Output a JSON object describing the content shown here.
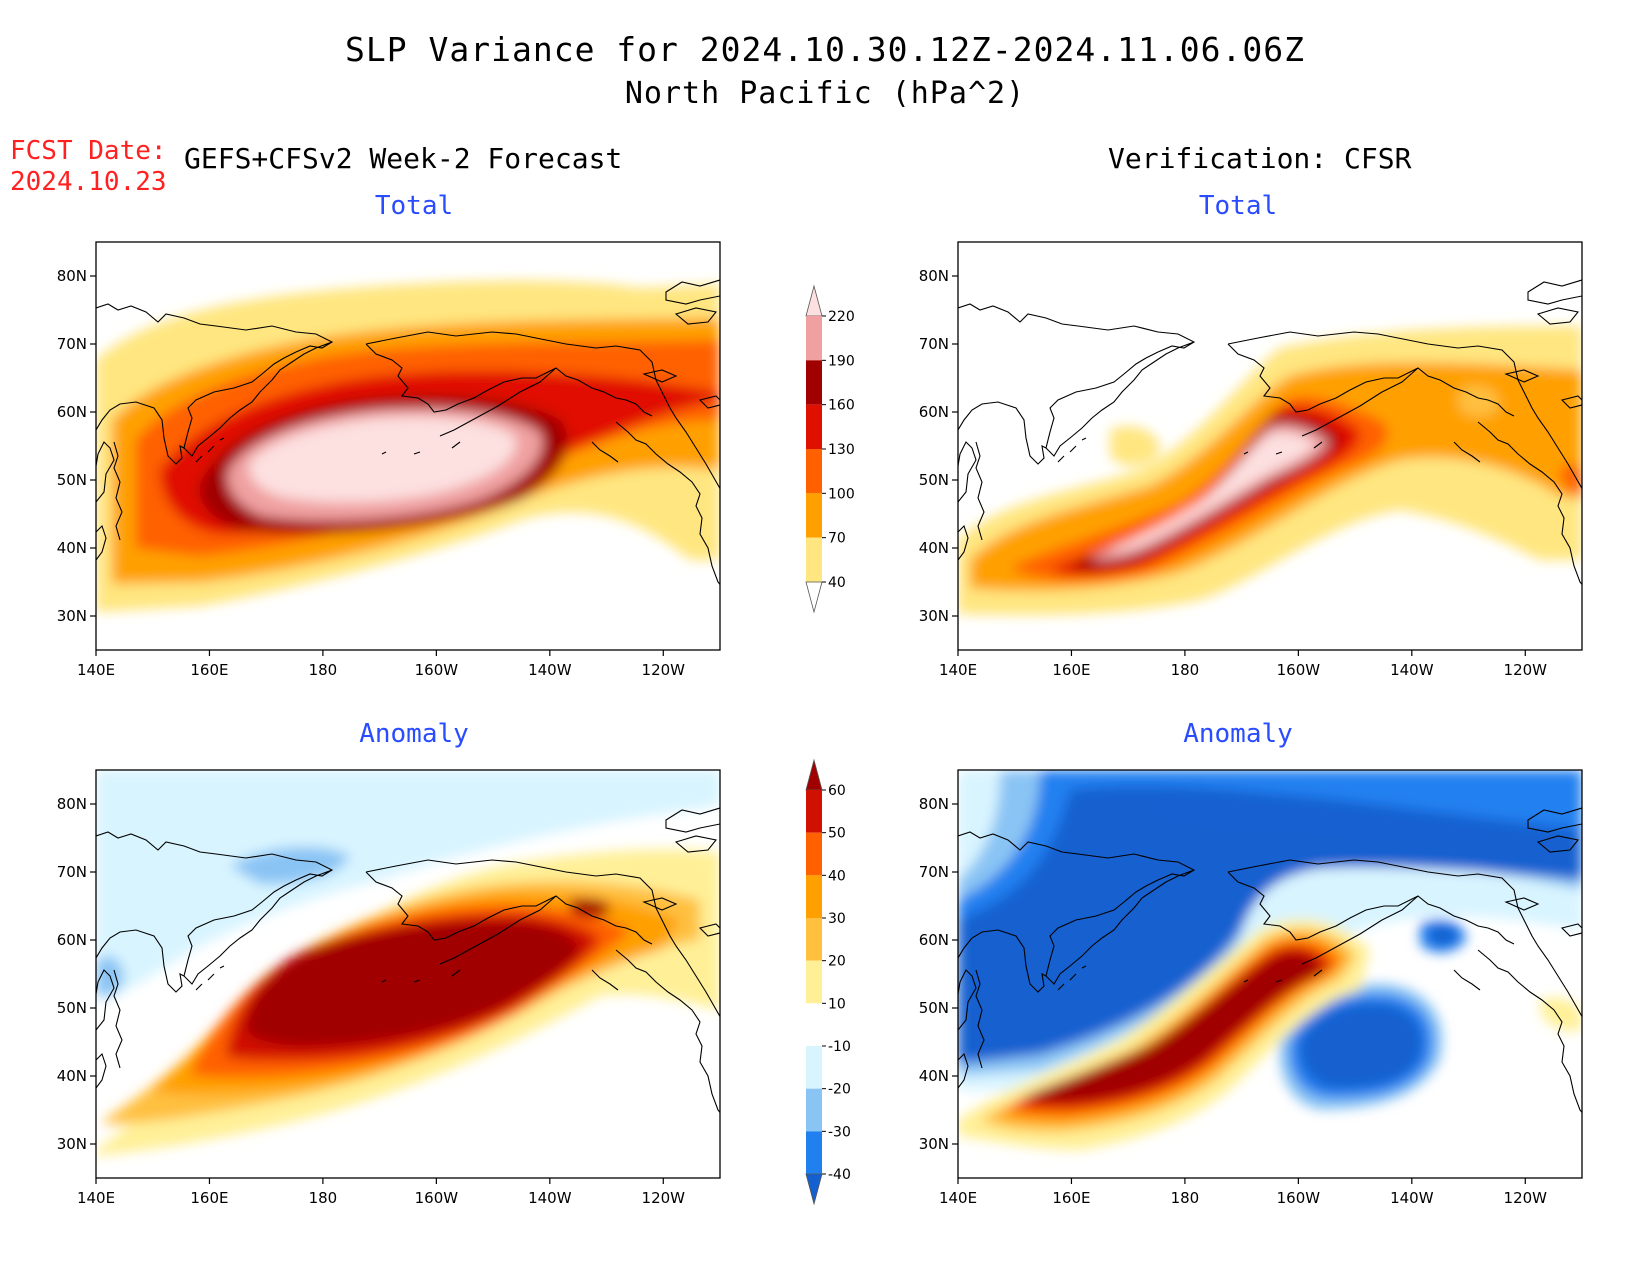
{
  "header": {
    "title": "SLP Variance for 2024.10.30.12Z-2024.11.06.06Z",
    "subtitle": "North Pacific (hPa^2)",
    "fcst_label": "FCST Date:",
    "fcst_date": "2024.10.23",
    "left_header": "GEFS+CFSv2 Week-2 Forecast",
    "right_header": "Verification: CFSR"
  },
  "panels": [
    {
      "id": "fcst-total",
      "title": "Total"
    },
    {
      "id": "verif-total",
      "title": "Total"
    },
    {
      "id": "fcst-anomaly",
      "title": "Anomaly"
    },
    {
      "id": "verif-anomaly",
      "title": "Anomaly"
    }
  ],
  "axes": {
    "lon_ticks": [
      "140E",
      "160E",
      "180",
      "160W",
      "140W",
      "120W"
    ],
    "lat_ticks": [
      "80N",
      "70N",
      "60N",
      "50N",
      "40N",
      "30N"
    ],
    "lon_range_deg": [
      140,
      250
    ],
    "lat_range_deg": [
      25,
      85
    ]
  },
  "colorbars": {
    "total": {
      "levels": [
        "40",
        "70",
        "100",
        "130",
        "160",
        "190",
        "220"
      ],
      "colors": [
        "#ffffff",
        "#ffe680",
        "#ffa000",
        "#ff6000",
        "#e01000",
        "#a00000",
        "#f0a0a0",
        "#fde0e0"
      ]
    },
    "anomaly": {
      "levels": [
        "-40",
        "-30",
        "-20",
        "-10",
        "10",
        "20",
        "30",
        "40",
        "50",
        "60"
      ],
      "colors": [
        "#1560d0",
        "#2080f0",
        "#8ac4f4",
        "#d8f4ff",
        "#ffffff",
        "#fff098",
        "#ffc040",
        "#ffa000",
        "#ff6000",
        "#d01000",
        "#a00000"
      ]
    }
  }
}
